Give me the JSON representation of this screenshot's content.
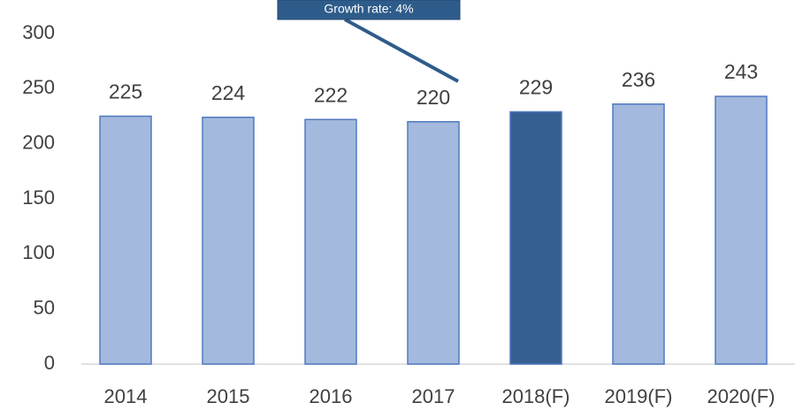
{
  "chart_data": {
    "type": "bar",
    "categories": [
      "2014",
      "2015",
      "2016",
      "2017",
      "2018(F)",
      "2019(F)",
      "2020(F)"
    ],
    "values": [
      225,
      224,
      222,
      220,
      229,
      236,
      243
    ],
    "colors": [
      "#a3b9dd",
      "#a3b9dd",
      "#a3b9dd",
      "#a3b9dd",
      "#365f91",
      "#a3b9dd",
      "#a3b9dd"
    ],
    "ylim": [
      0,
      300
    ],
    "yticks": [
      0,
      50,
      100,
      150,
      200,
      250,
      300
    ],
    "grid": false,
    "annotation": "Growth rate: 4%"
  }
}
